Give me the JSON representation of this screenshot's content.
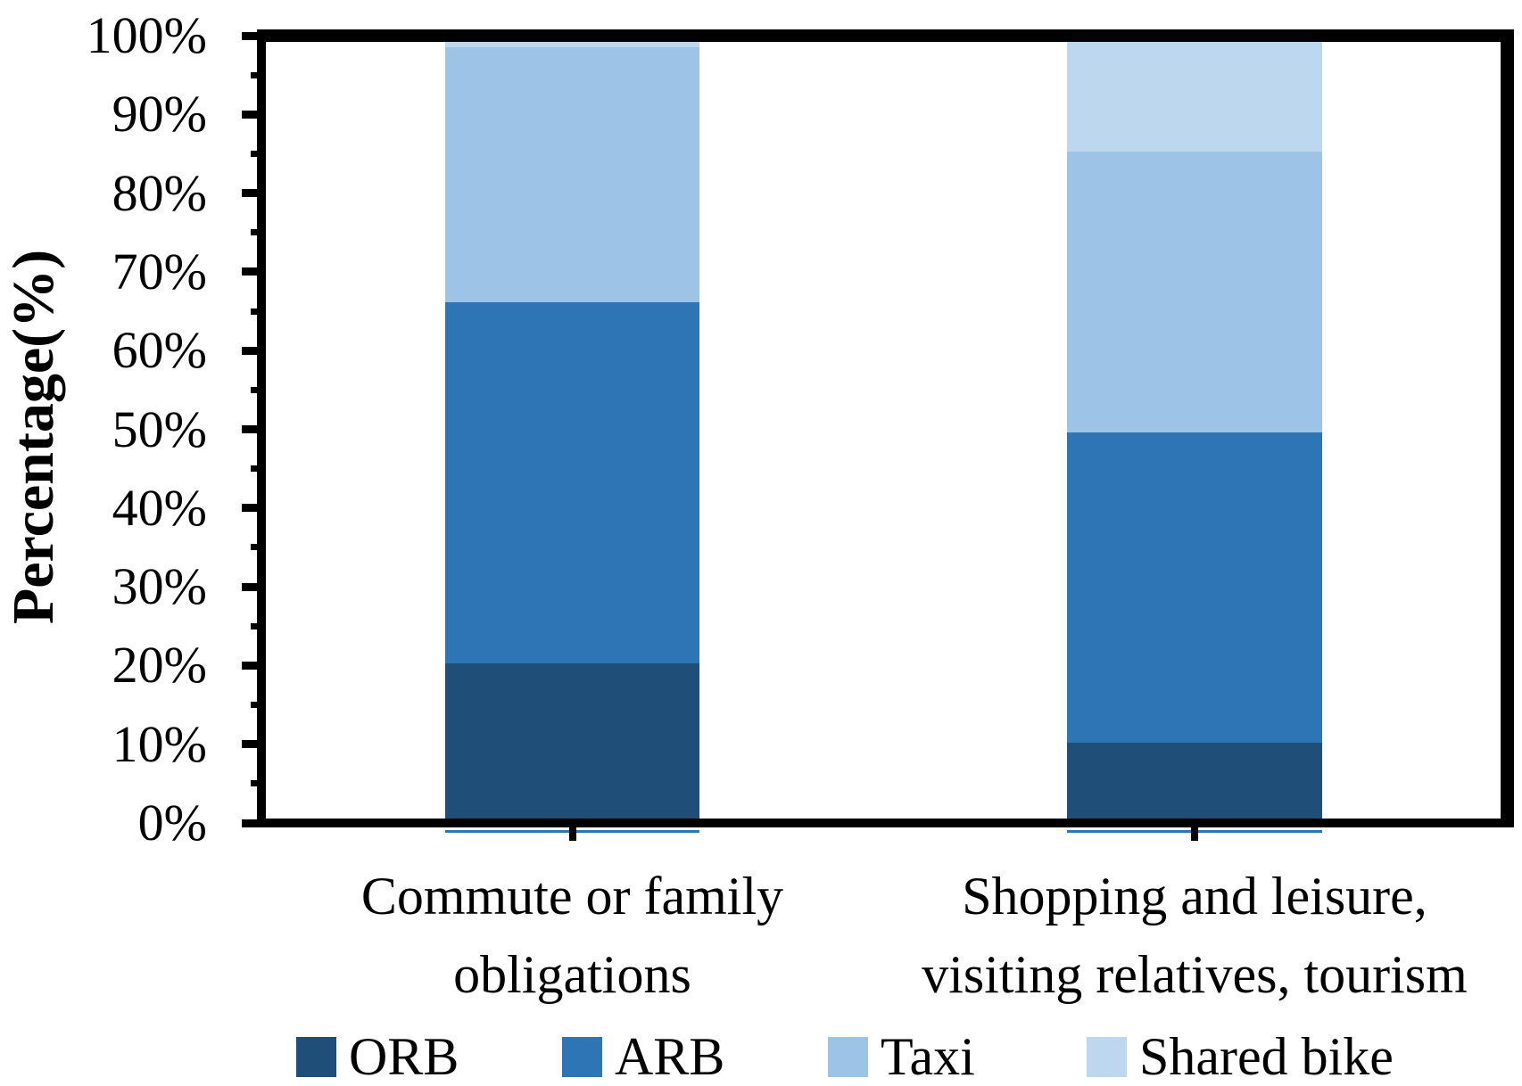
{
  "chart_data": {
    "type": "bar",
    "subtype": "stacked-100-percent",
    "title": "",
    "ylabel": "Percentage(%)",
    "xlabel": "",
    "categories": [
      "Commute or family\nobligations",
      "Shopping and leisure,\nvisiting relatives, tourism"
    ],
    "series": [
      {
        "name": "ORB",
        "color": "#1F4E79",
        "values": [
          20.3,
          10.2
        ]
      },
      {
        "name": "ARB",
        "color": "#2E75B6",
        "values": [
          45.8,
          39.4
        ]
      },
      {
        "name": "Taxi",
        "color": "#9DC3E6",
        "values": [
          32.4,
          35.7
        ]
      },
      {
        "name": "Shared bike",
        "color": "#BDD7EE",
        "values": [
          1.5,
          14.7
        ]
      }
    ],
    "ylim": [
      0,
      100
    ],
    "ytick_labels": [
      "0%",
      "10%",
      "20%",
      "30%",
      "40%",
      "50%",
      "60%",
      "70%",
      "80%",
      "90%",
      "100%"
    ],
    "ytick_step": 10,
    "minor_tick_step": 5,
    "grid": false,
    "legend_position": "bottom"
  },
  "colors": {
    "axis": "#000000",
    "bar_underline": "#2E75B6",
    "text": "#000000",
    "background": "#FFFFFF"
  }
}
